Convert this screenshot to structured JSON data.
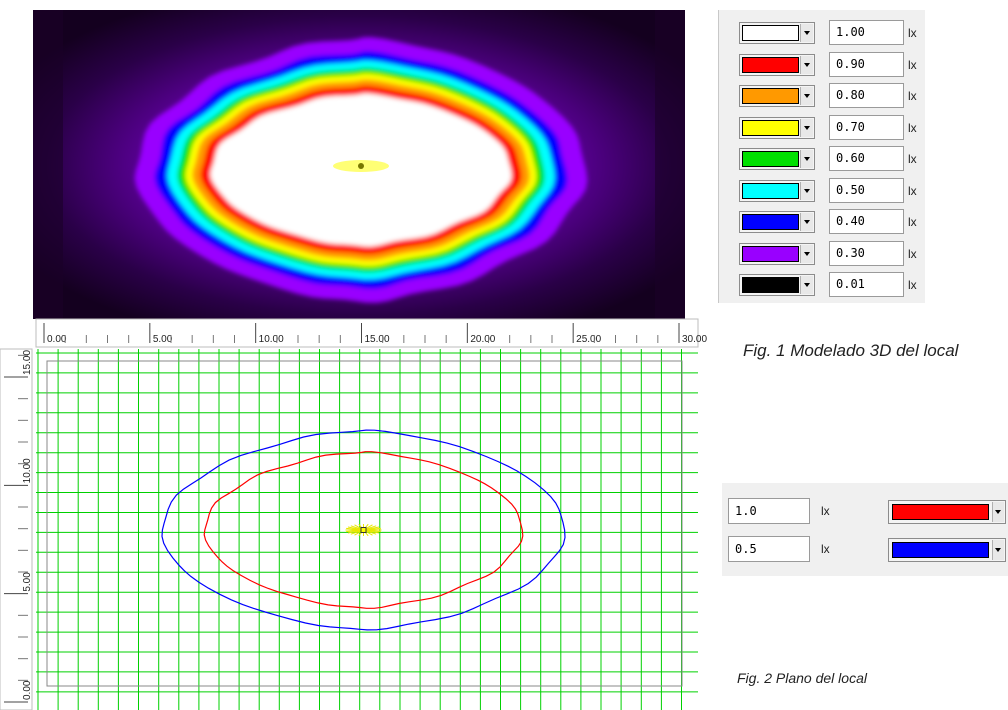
{
  "render_legend": {
    "unit": "lx",
    "levels": [
      {
        "value": "1.00",
        "color": "#ffffff"
      },
      {
        "value": "0.90",
        "color": "#ff0000"
      },
      {
        "value": "0.80",
        "color": "#ff9900"
      },
      {
        "value": "0.70",
        "color": "#ffff00"
      },
      {
        "value": "0.60",
        "color": "#00e000"
      },
      {
        "value": "0.50",
        "color": "#00ffff"
      },
      {
        "value": "0.40",
        "color": "#0000ff"
      },
      {
        "value": "0.30",
        "color": "#9900ff"
      },
      {
        "value": "0.01",
        "color": "#000000"
      }
    ]
  },
  "plan": {
    "x_ticks": [
      "0.00",
      "5.00",
      "10.00",
      "15.00",
      "20.00",
      "25.00",
      "30.00"
    ],
    "y_ticks": [
      "0.00",
      "5.00",
      "10.00",
      "15.00"
    ],
    "grid_color": "#00d000",
    "isolines": [
      {
        "value": "1.0",
        "color": "#ff0000"
      },
      {
        "value": "0.5",
        "color": "#0000ff"
      }
    ]
  },
  "isoline_legend": {
    "unit": "lx",
    "rows": [
      {
        "value": "1.0",
        "color": "#ff0000"
      },
      {
        "value": "0.5",
        "color": "#0000ff"
      }
    ]
  },
  "captions": {
    "fig1": "Fig. 1 Modelado 3D del local",
    "fig2": "Fig. 2 Plano del local"
  }
}
